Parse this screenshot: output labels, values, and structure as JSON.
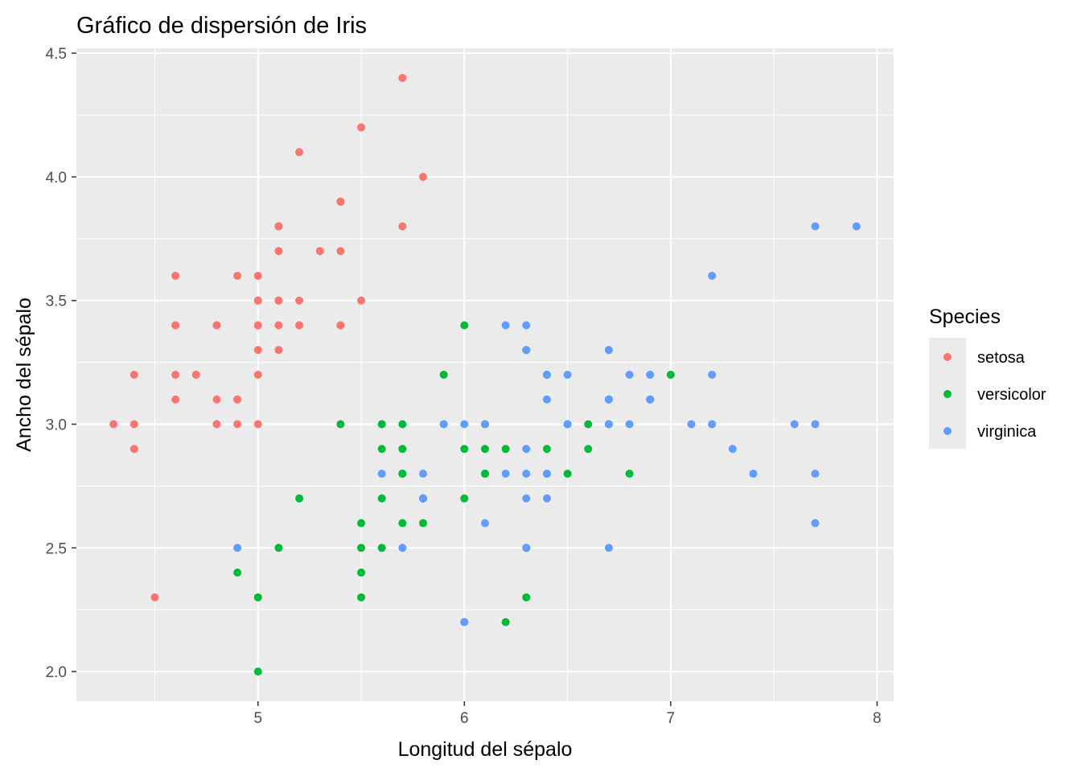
{
  "chart_data": {
    "type": "scatter",
    "title": "Gráfico de dispersión de Iris",
    "xlabel": "Longitud del sépalo",
    "ylabel": "Ancho del sépalo",
    "xlim": [
      4.12,
      8.08
    ],
    "ylim": [
      1.88,
      4.52
    ],
    "x_ticks": [
      5,
      6,
      7,
      8
    ],
    "y_ticks": [
      "2.0",
      "2.5",
      "3.0",
      "3.5",
      "4.0",
      "4.5"
    ],
    "grid": true,
    "legend": {
      "title": "Species",
      "position": "right"
    },
    "series": [
      {
        "name": "setosa",
        "color": "#F8766D",
        "points": [
          [
            5.1,
            3.5
          ],
          [
            4.9,
            3.0
          ],
          [
            4.7,
            3.2
          ],
          [
            4.6,
            3.1
          ],
          [
            5.0,
            3.6
          ],
          [
            5.4,
            3.9
          ],
          [
            4.6,
            3.4
          ],
          [
            5.0,
            3.4
          ],
          [
            4.4,
            2.9
          ],
          [
            4.9,
            3.1
          ],
          [
            5.4,
            3.7
          ],
          [
            4.8,
            3.4
          ],
          [
            4.8,
            3.0
          ],
          [
            4.3,
            3.0
          ],
          [
            5.8,
            4.0
          ],
          [
            5.7,
            4.4
          ],
          [
            5.4,
            3.9
          ],
          [
            5.1,
            3.5
          ],
          [
            5.7,
            3.8
          ],
          [
            5.1,
            3.8
          ],
          [
            5.4,
            3.4
          ],
          [
            5.1,
            3.7
          ],
          [
            4.6,
            3.6
          ],
          [
            5.1,
            3.3
          ],
          [
            4.8,
            3.4
          ],
          [
            5.0,
            3.0
          ],
          [
            5.0,
            3.4
          ],
          [
            5.2,
            3.5
          ],
          [
            5.2,
            3.4
          ],
          [
            4.7,
            3.2
          ],
          [
            4.8,
            3.1
          ],
          [
            5.4,
            3.4
          ],
          [
            5.2,
            4.1
          ],
          [
            5.5,
            4.2
          ],
          [
            4.9,
            3.1
          ],
          [
            5.0,
            3.2
          ],
          [
            5.5,
            3.5
          ],
          [
            4.9,
            3.6
          ],
          [
            4.4,
            3.0
          ],
          [
            5.1,
            3.4
          ],
          [
            5.0,
            3.5
          ],
          [
            4.5,
            2.3
          ],
          [
            4.4,
            3.2
          ],
          [
            5.0,
            3.5
          ],
          [
            5.1,
            3.8
          ],
          [
            4.8,
            3.0
          ],
          [
            5.1,
            3.8
          ],
          [
            4.6,
            3.2
          ],
          [
            5.3,
            3.7
          ],
          [
            5.0,
            3.3
          ]
        ]
      },
      {
        "name": "versicolor",
        "color": "#00BA38",
        "points": [
          [
            7.0,
            3.2
          ],
          [
            6.4,
            3.2
          ],
          [
            6.9,
            3.1
          ],
          [
            5.5,
            2.3
          ],
          [
            6.5,
            2.8
          ],
          [
            5.7,
            2.8
          ],
          [
            6.3,
            3.3
          ],
          [
            4.9,
            2.4
          ],
          [
            6.6,
            2.9
          ],
          [
            5.2,
            2.7
          ],
          [
            5.0,
            2.0
          ],
          [
            5.9,
            3.0
          ],
          [
            6.0,
            2.2
          ],
          [
            6.1,
            2.9
          ],
          [
            5.6,
            2.9
          ],
          [
            6.7,
            3.1
          ],
          [
            5.6,
            3.0
          ],
          [
            5.8,
            2.7
          ],
          [
            6.2,
            2.2
          ],
          [
            5.6,
            2.5
          ],
          [
            5.9,
            3.2
          ],
          [
            6.1,
            2.8
          ],
          [
            6.3,
            2.5
          ],
          [
            6.1,
            2.8
          ],
          [
            6.4,
            2.9
          ],
          [
            6.6,
            3.0
          ],
          [
            6.8,
            2.8
          ],
          [
            6.7,
            3.0
          ],
          [
            6.0,
            2.9
          ],
          [
            5.7,
            2.6
          ],
          [
            5.5,
            2.4
          ],
          [
            5.5,
            2.4
          ],
          [
            5.8,
            2.7
          ],
          [
            6.0,
            2.7
          ],
          [
            5.4,
            3.0
          ],
          [
            6.0,
            3.4
          ],
          [
            6.7,
            3.1
          ],
          [
            6.3,
            2.3
          ],
          [
            5.6,
            3.0
          ],
          [
            5.5,
            2.5
          ],
          [
            5.5,
            2.6
          ],
          [
            6.1,
            3.0
          ],
          [
            5.8,
            2.6
          ],
          [
            5.0,
            2.3
          ],
          [
            5.6,
            2.7
          ],
          [
            5.7,
            3.0
          ],
          [
            5.7,
            2.9
          ],
          [
            6.2,
            2.9
          ],
          [
            5.1,
            2.5
          ],
          [
            5.7,
            2.8
          ]
        ]
      },
      {
        "name": "virginica",
        "color": "#619CFF",
        "points": [
          [
            6.3,
            3.3
          ],
          [
            5.8,
            2.7
          ],
          [
            7.1,
            3.0
          ],
          [
            6.3,
            2.9
          ],
          [
            6.5,
            3.0
          ],
          [
            7.6,
            3.0
          ],
          [
            4.9,
            2.5
          ],
          [
            7.3,
            2.9
          ],
          [
            6.7,
            2.5
          ],
          [
            7.2,
            3.6
          ],
          [
            6.5,
            3.2
          ],
          [
            6.4,
            2.7
          ],
          [
            6.8,
            3.0
          ],
          [
            5.7,
            2.5
          ],
          [
            5.8,
            2.8
          ],
          [
            6.4,
            3.2
          ],
          [
            6.5,
            3.0
          ],
          [
            7.7,
            3.8
          ],
          [
            7.7,
            2.6
          ],
          [
            6.0,
            2.2
          ],
          [
            6.9,
            3.2
          ],
          [
            5.6,
            2.8
          ],
          [
            7.7,
            2.8
          ],
          [
            6.3,
            2.7
          ],
          [
            6.7,
            3.3
          ],
          [
            7.2,
            3.2
          ],
          [
            6.2,
            2.8
          ],
          [
            6.1,
            3.0
          ],
          [
            6.4,
            2.8
          ],
          [
            7.2,
            3.0
          ],
          [
            7.4,
            2.8
          ],
          [
            7.9,
            3.8
          ],
          [
            6.4,
            2.8
          ],
          [
            6.3,
            2.8
          ],
          [
            6.1,
            2.6
          ],
          [
            7.7,
            3.0
          ],
          [
            6.3,
            3.4
          ],
          [
            6.4,
            3.1
          ],
          [
            6.0,
            3.0
          ],
          [
            6.9,
            3.1
          ],
          [
            6.7,
            3.1
          ],
          [
            6.9,
            3.1
          ],
          [
            5.8,
            2.7
          ],
          [
            6.8,
            3.2
          ],
          [
            6.7,
            3.3
          ],
          [
            6.7,
            3.0
          ],
          [
            6.3,
            2.5
          ],
          [
            6.5,
            3.0
          ],
          [
            6.2,
            3.4
          ],
          [
            5.9,
            3.0
          ]
        ]
      }
    ]
  }
}
